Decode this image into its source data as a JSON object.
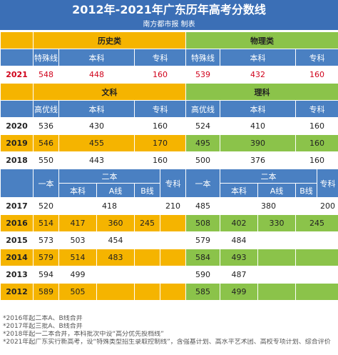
{
  "title": "2012年-2021年广东历年高考分数线",
  "subtitle": "南方都市报 制表",
  "headers": {
    "history": "历史类",
    "physics": "物理类",
    "special": "特殊线",
    "undergrad": "本科",
    "junior": "专科",
    "arts": "文科",
    "science": "理科",
    "high": "高优线",
    "tier1": "一本",
    "tier2": "二本",
    "lineA": "A线",
    "lineB": "B线"
  },
  "row2021": {
    "year": "2021",
    "hs": "548",
    "hu": "448",
    "hj": "160",
    "ps": "539",
    "pu": "432",
    "pj": "160"
  },
  "rows_mid": [
    {
      "year": "2020",
      "ah": "536",
      "au": "430",
      "aj": "160",
      "sh": "524",
      "su": "410",
      "sj": "160"
    },
    {
      "year": "2019",
      "ah": "546",
      "au": "455",
      "aj": "170",
      "sh": "495",
      "su": "390",
      "sj": "160"
    },
    {
      "year": "2018",
      "ah": "550",
      "au": "443",
      "aj": "160",
      "sh": "500",
      "su": "376",
      "sj": "160"
    }
  ],
  "row2017": {
    "year": "2017",
    "a1": "520",
    "a2": "418",
    "aj": "210",
    "s1": "485",
    "s2": "380",
    "sj": "200"
  },
  "rows_old": [
    {
      "year": "2016",
      "a1": "514",
      "a2": "417",
      "aa": "360",
      "ab": "245",
      "s1": "508",
      "s2": "402",
      "sa": "330",
      "sb": "245"
    },
    {
      "year": "2015",
      "a1": "573",
      "a2": "503",
      "aa": "454",
      "ab": "",
      "s1": "579",
      "s2": "484",
      "sa": "",
      "sb": ""
    },
    {
      "year": "2014",
      "a1": "579",
      "a2": "514",
      "aa": "483",
      "ab": "",
      "s1": "584",
      "s2": "493",
      "sa": "",
      "sb": ""
    },
    {
      "year": "2013",
      "a1": "594",
      "a2": "499",
      "aa": "",
      "ab": "",
      "s1": "590",
      "s2": "487",
      "sa": "",
      "sb": ""
    },
    {
      "year": "2012",
      "a1": "589",
      "a2": "505",
      "aa": "",
      "ab": "",
      "s1": "585",
      "s2": "499",
      "sa": "",
      "sb": ""
    }
  ],
  "notes": [
    "*2016年起二本A、B线合并",
    "*2017年起三批A、B线合并",
    "*2018年起一二本合并，本科批次中设“高分优先投档线”",
    "*2021年起广东实行新高考，设“特殊类型招生录取控制线”，含强基计划、高水平艺术团、高校专项计划、综合评价"
  ]
}
